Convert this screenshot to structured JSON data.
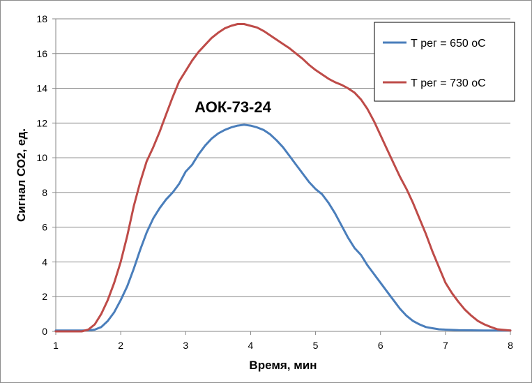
{
  "chart_data": {
    "type": "line",
    "title": "",
    "annotation": "АОК-73-24",
    "xlabel": "Время, мин",
    "ylabel": "Сигнал СО2, ед.",
    "xlim": [
      1,
      8
    ],
    "ylim": [
      0,
      18
    ],
    "xticks": [
      "1",
      "2",
      "3",
      "4",
      "5",
      "6",
      "7",
      "8"
    ],
    "yticks": [
      "0",
      "2",
      "4",
      "6",
      "8",
      "10",
      "12",
      "14",
      "16",
      "18"
    ],
    "grid": "horizontal",
    "legend_position": "top-right",
    "series": [
      {
        "name": "Т рег = 650 оС",
        "color": "#4a7ebb",
        "x": [
          1.0,
          1.2,
          1.4,
          1.5,
          1.6,
          1.7,
          1.8,
          1.9,
          2.0,
          2.1,
          2.2,
          2.3,
          2.4,
          2.5,
          2.6,
          2.7,
          2.8,
          2.9,
          3.0,
          3.1,
          3.2,
          3.3,
          3.4,
          3.5,
          3.6,
          3.7,
          3.8,
          3.9,
          4.0,
          4.1,
          4.2,
          4.3,
          4.4,
          4.5,
          4.6,
          4.7,
          4.8,
          4.9,
          5.0,
          5.1,
          5.2,
          5.3,
          5.4,
          5.5,
          5.6,
          5.7,
          5.8,
          5.9,
          6.0,
          6.1,
          6.2,
          6.3,
          6.4,
          6.5,
          6.6,
          6.7,
          6.8,
          6.9,
          7.0,
          7.2,
          7.4,
          7.6,
          7.8,
          8.0
        ],
        "y": [
          0.05,
          0.05,
          0.05,
          0.06,
          0.1,
          0.25,
          0.6,
          1.1,
          1.8,
          2.6,
          3.6,
          4.7,
          5.7,
          6.5,
          7.1,
          7.6,
          8.0,
          8.5,
          9.2,
          9.6,
          10.2,
          10.7,
          11.1,
          11.4,
          11.6,
          11.75,
          11.85,
          11.9,
          11.85,
          11.75,
          11.6,
          11.35,
          11.0,
          10.6,
          10.1,
          9.6,
          9.1,
          8.6,
          8.2,
          7.9,
          7.4,
          6.8,
          6.1,
          5.4,
          4.8,
          4.4,
          3.8,
          3.3,
          2.8,
          2.3,
          1.8,
          1.3,
          0.9,
          0.6,
          0.4,
          0.25,
          0.18,
          0.12,
          0.1,
          0.07,
          0.06,
          0.05,
          0.05,
          0.05
        ]
      },
      {
        "name": "Т рег = 730 оС",
        "color": "#be4b48",
        "x": [
          1.0,
          1.2,
          1.4,
          1.5,
          1.6,
          1.7,
          1.8,
          1.9,
          2.0,
          2.1,
          2.2,
          2.3,
          2.4,
          2.5,
          2.6,
          2.7,
          2.8,
          2.9,
          3.0,
          3.1,
          3.2,
          3.3,
          3.4,
          3.5,
          3.6,
          3.7,
          3.8,
          3.9,
          4.0,
          4.1,
          4.2,
          4.3,
          4.4,
          4.5,
          4.6,
          4.7,
          4.8,
          4.9,
          5.0,
          5.1,
          5.2,
          5.3,
          5.4,
          5.5,
          5.6,
          5.7,
          5.8,
          5.9,
          6.0,
          6.1,
          6.2,
          6.3,
          6.4,
          6.5,
          6.6,
          6.7,
          6.8,
          6.9,
          7.0,
          7.1,
          7.2,
          7.3,
          7.4,
          7.5,
          7.6,
          7.7,
          7.8,
          8.0
        ],
        "y": [
          0.0,
          0.0,
          0.0,
          0.1,
          0.4,
          1.0,
          1.8,
          2.8,
          4.0,
          5.5,
          7.2,
          8.6,
          9.8,
          10.6,
          11.5,
          12.5,
          13.5,
          14.4,
          15.0,
          15.6,
          16.1,
          16.5,
          16.9,
          17.2,
          17.45,
          17.6,
          17.7,
          17.7,
          17.6,
          17.5,
          17.3,
          17.05,
          16.8,
          16.55,
          16.3,
          16.0,
          15.7,
          15.35,
          15.05,
          14.8,
          14.55,
          14.35,
          14.2,
          14.0,
          13.75,
          13.35,
          12.8,
          12.1,
          11.3,
          10.5,
          9.7,
          8.9,
          8.2,
          7.4,
          6.5,
          5.6,
          4.6,
          3.7,
          2.8,
          2.2,
          1.7,
          1.25,
          0.9,
          0.6,
          0.4,
          0.25,
          0.12,
          0.05
        ]
      }
    ]
  }
}
